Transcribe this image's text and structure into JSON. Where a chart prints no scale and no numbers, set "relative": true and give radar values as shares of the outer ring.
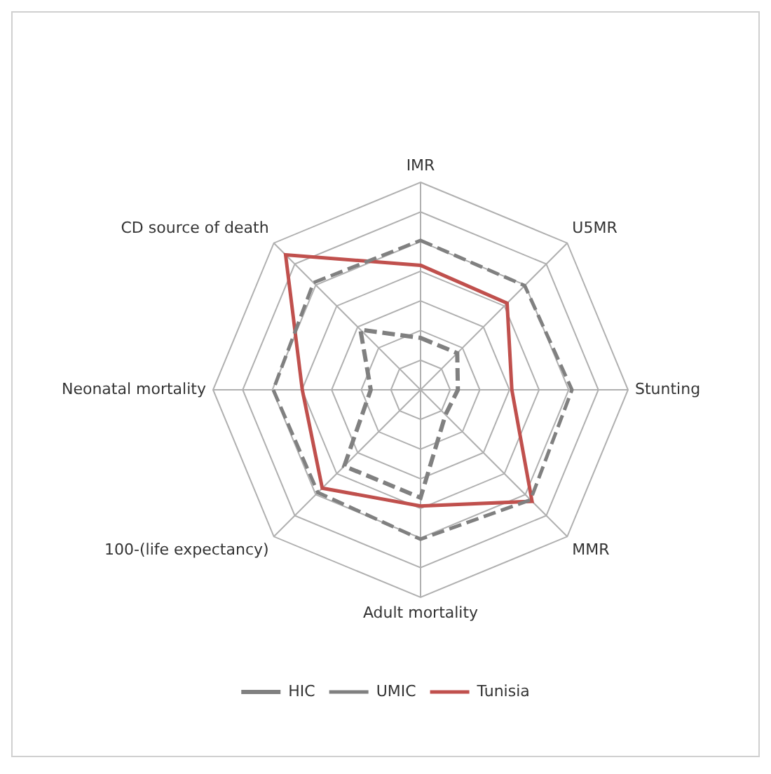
{
  "chart_data": {
    "type": "radar",
    "relative": true,
    "categories": [
      "IMR",
      "U5MR",
      "Stunting",
      "MMR",
      "Adult mortality",
      "100-(life expectancy)",
      "Neonatal mortality",
      "CD source of death"
    ],
    "series": [
      {
        "name": "HIC",
        "color": "#808080",
        "line_style": "dashed",
        "values": [
          0.25,
          0.25,
          0.18,
          0.17,
          0.52,
          0.52,
          0.24,
          0.41
        ]
      },
      {
        "name": "UMIC",
        "color": "#808080",
        "line_style": "dashed",
        "values": [
          0.72,
          0.71,
          0.73,
          0.75,
          0.72,
          0.7,
          0.71,
          0.73
        ]
      },
      {
        "name": "Tunisia",
        "color": "#c0504d",
        "line_style": "solid",
        "values": [
          0.6,
          0.59,
          0.44,
          0.76,
          0.56,
          0.67,
          0.57,
          0.92
        ]
      }
    ],
    "legend": "bottom",
    "grid": true,
    "marker": "none"
  }
}
